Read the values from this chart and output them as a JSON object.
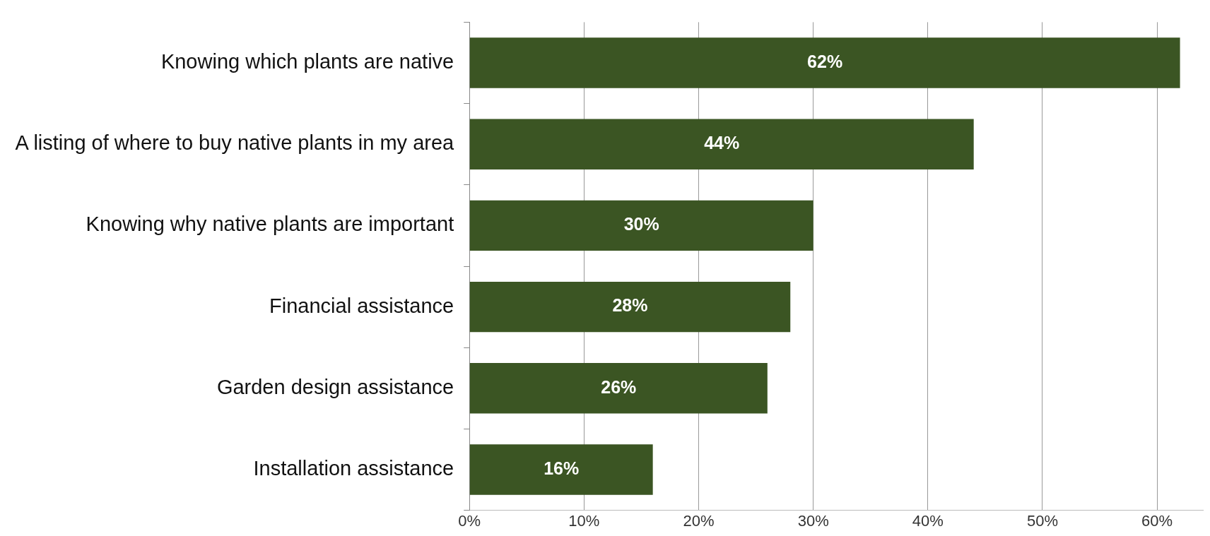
{
  "chart_data": {
    "type": "bar",
    "orientation": "horizontal",
    "categories": [
      "Knowing which plants are native",
      "A listing of where to buy native plants in my area",
      "Knowing why native plants are important",
      "Financial assistance",
      "Garden design assistance",
      "Installation assistance"
    ],
    "values": [
      62,
      44,
      30,
      28,
      26,
      16
    ],
    "value_labels": [
      "62%",
      "44%",
      "30%",
      "28%",
      "26%",
      "16%"
    ],
    "color": "#3b5523",
    "xlim": [
      0,
      64
    ],
    "xticks": [
      {
        "value": 0,
        "label": "0%"
      },
      {
        "value": 10,
        "label": "10%"
      },
      {
        "value": 20,
        "label": "20%"
      },
      {
        "value": 30,
        "label": "30%"
      },
      {
        "value": 40,
        "label": "40%"
      },
      {
        "value": 50,
        "label": "50%"
      },
      {
        "value": 60,
        "label": "60%"
      }
    ],
    "grid": "x",
    "legend": false
  }
}
